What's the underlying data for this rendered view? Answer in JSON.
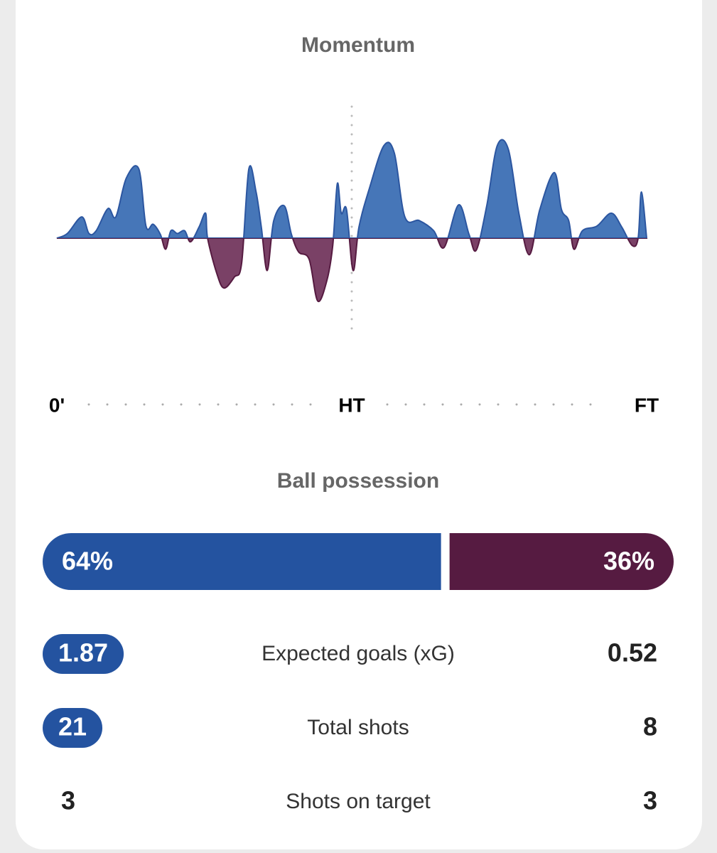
{
  "chart_data": {
    "type": "area",
    "title": "Momentum",
    "x": [
      0,
      1.6,
      3.8,
      4.9,
      6.0,
      7.8,
      9.0,
      10.6,
      12.5,
      13.6,
      14.7,
      15.8,
      16.6,
      17.4,
      18.4,
      19.5,
      20.4,
      21.7,
      22.7,
      23.0,
      24.4,
      25.5,
      27.1,
      28.2,
      29.3,
      30.4,
      31.2,
      32.1,
      33.1,
      34.7,
      35.8,
      36.9,
      38.5,
      39.8,
      41.2,
      42.1,
      42.8,
      43.4,
      44.2,
      45.2,
      46.1,
      47.7,
      49.9,
      51.5,
      53.1,
      55.3,
      57.5,
      59.1,
      61.3,
      62.9,
      64.0,
      65.6,
      67.2,
      68.9,
      70.5,
      72.1,
      73.7,
      75.9,
      77.0,
      78.1,
      78.9,
      80.2,
      82.4,
      84.6,
      86.2,
      87.8,
      88.7,
      89.2,
      90
    ],
    "values": [
      0,
      5,
      23,
      5,
      8,
      32,
      23,
      65,
      75,
      13,
      15,
      4,
      -12,
      8,
      5,
      8,
      -4,
      12,
      27,
      0,
      -38,
      -54,
      -42,
      -27,
      75,
      50,
      12,
      -35,
      19,
      35,
      4,
      -15,
      -23,
      -68,
      -46,
      -8,
      59,
      27,
      31,
      -35,
      12,
      54,
      100,
      92,
      23,
      19,
      8,
      -10,
      36,
      4,
      -13,
      35,
      100,
      96,
      27,
      -18,
      31,
      71,
      31,
      19,
      -12,
      8,
      13,
      27,
      12,
      -8,
      0,
      50,
      0
    ],
    "xlim": [
      0,
      90
    ],
    "ylim": [
      -100,
      100
    ],
    "xticks": [
      {
        "value": 0,
        "label": "0'"
      },
      {
        "value": 45,
        "label": "HT"
      },
      {
        "value": 90,
        "label": "FT"
      }
    ],
    "positive_color": "#4676b8",
    "negative_color": "#7a4166"
  },
  "possession": {
    "title": "Ball possession",
    "home": 64,
    "away": 36,
    "home_label": "64%",
    "away_label": "36%",
    "home_color": "#2453a0",
    "away_color": "#561b41"
  },
  "stats": [
    {
      "label": "Expected goals (xG)",
      "home": 1.87,
      "away": 0.52,
      "highlight": "home"
    },
    {
      "label": "Total shots",
      "home": 21,
      "away": 8,
      "highlight": "home"
    },
    {
      "label": "Shots on target",
      "home": 3,
      "away": 3
    }
  ]
}
